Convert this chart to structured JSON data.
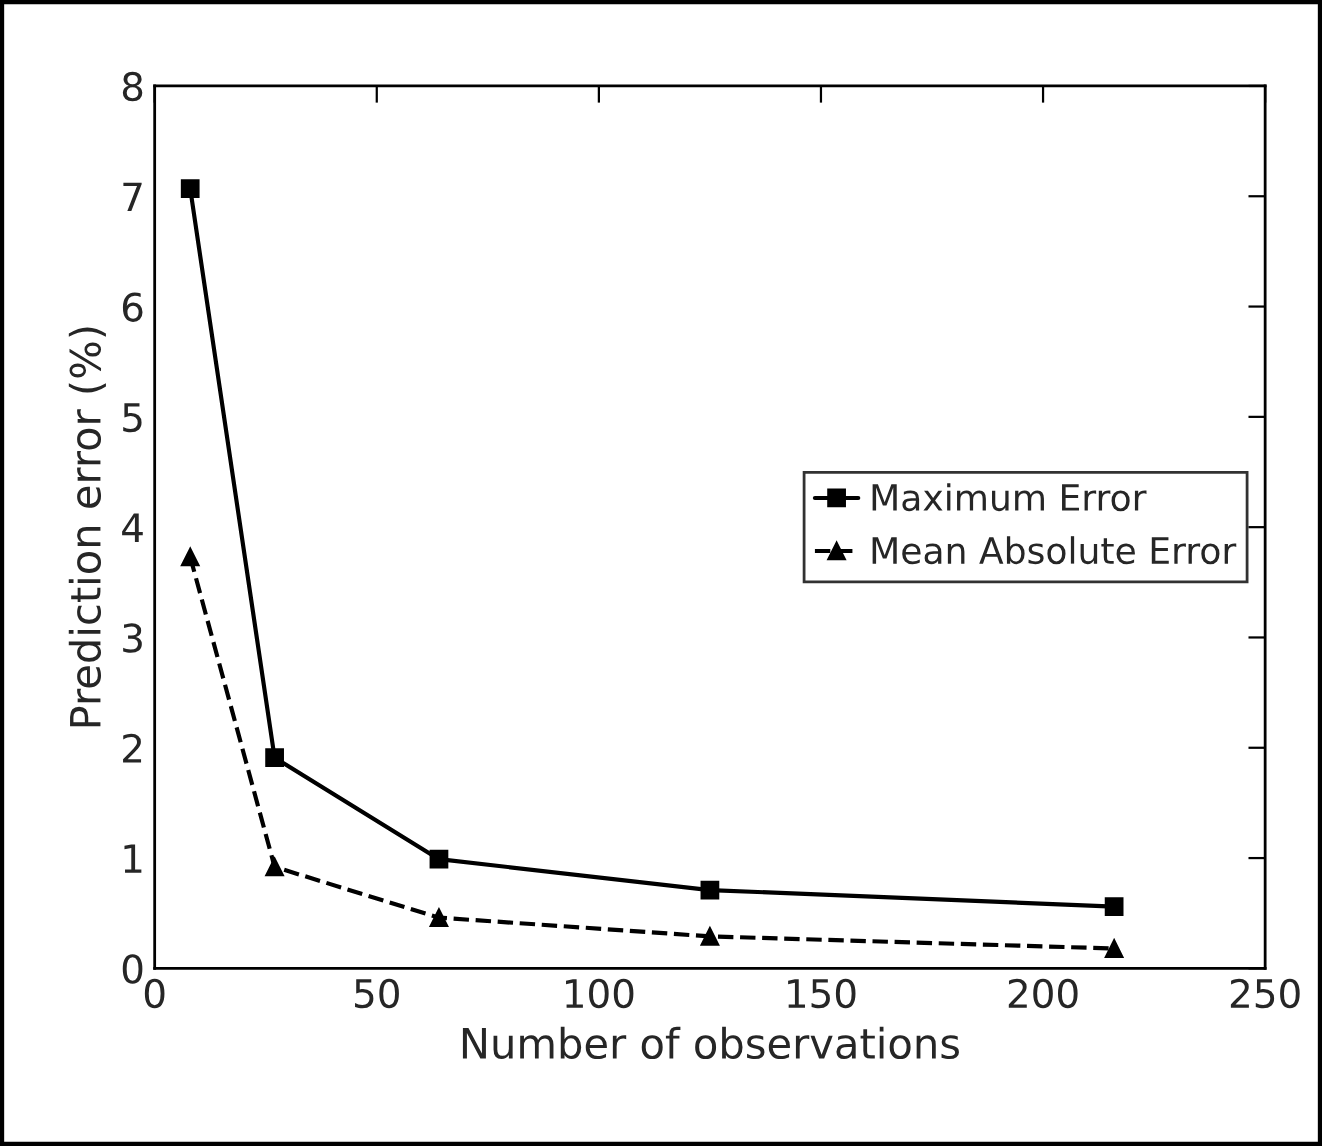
{
  "chart_data": {
    "type": "line",
    "xlabel": "Number of observations",
    "ylabel": "Prediction error (%)",
    "x": [
      8,
      27,
      64,
      125,
      216
    ],
    "series": [
      {
        "name": "Maximum Error",
        "color": "#000000",
        "values": [
          7.07,
          1.91,
          0.99,
          0.71,
          0.56
        ],
        "marker": "square",
        "line_style": "solid"
      },
      {
        "name": "Mean Absolute Error",
        "color": "#000000",
        "values": [
          3.73,
          0.92,
          0.46,
          0.29,
          0.18
        ],
        "marker": "triangle",
        "line_style": "dashed"
      }
    ],
    "xlim": [
      0,
      250
    ],
    "xticks": [
      0,
      50,
      100,
      150,
      200,
      250
    ],
    "ylim": [
      0,
      8
    ],
    "yticks": [
      0,
      1,
      2,
      3,
      4,
      5,
      6,
      7,
      8
    ],
    "grid": false,
    "legend": "right"
  }
}
